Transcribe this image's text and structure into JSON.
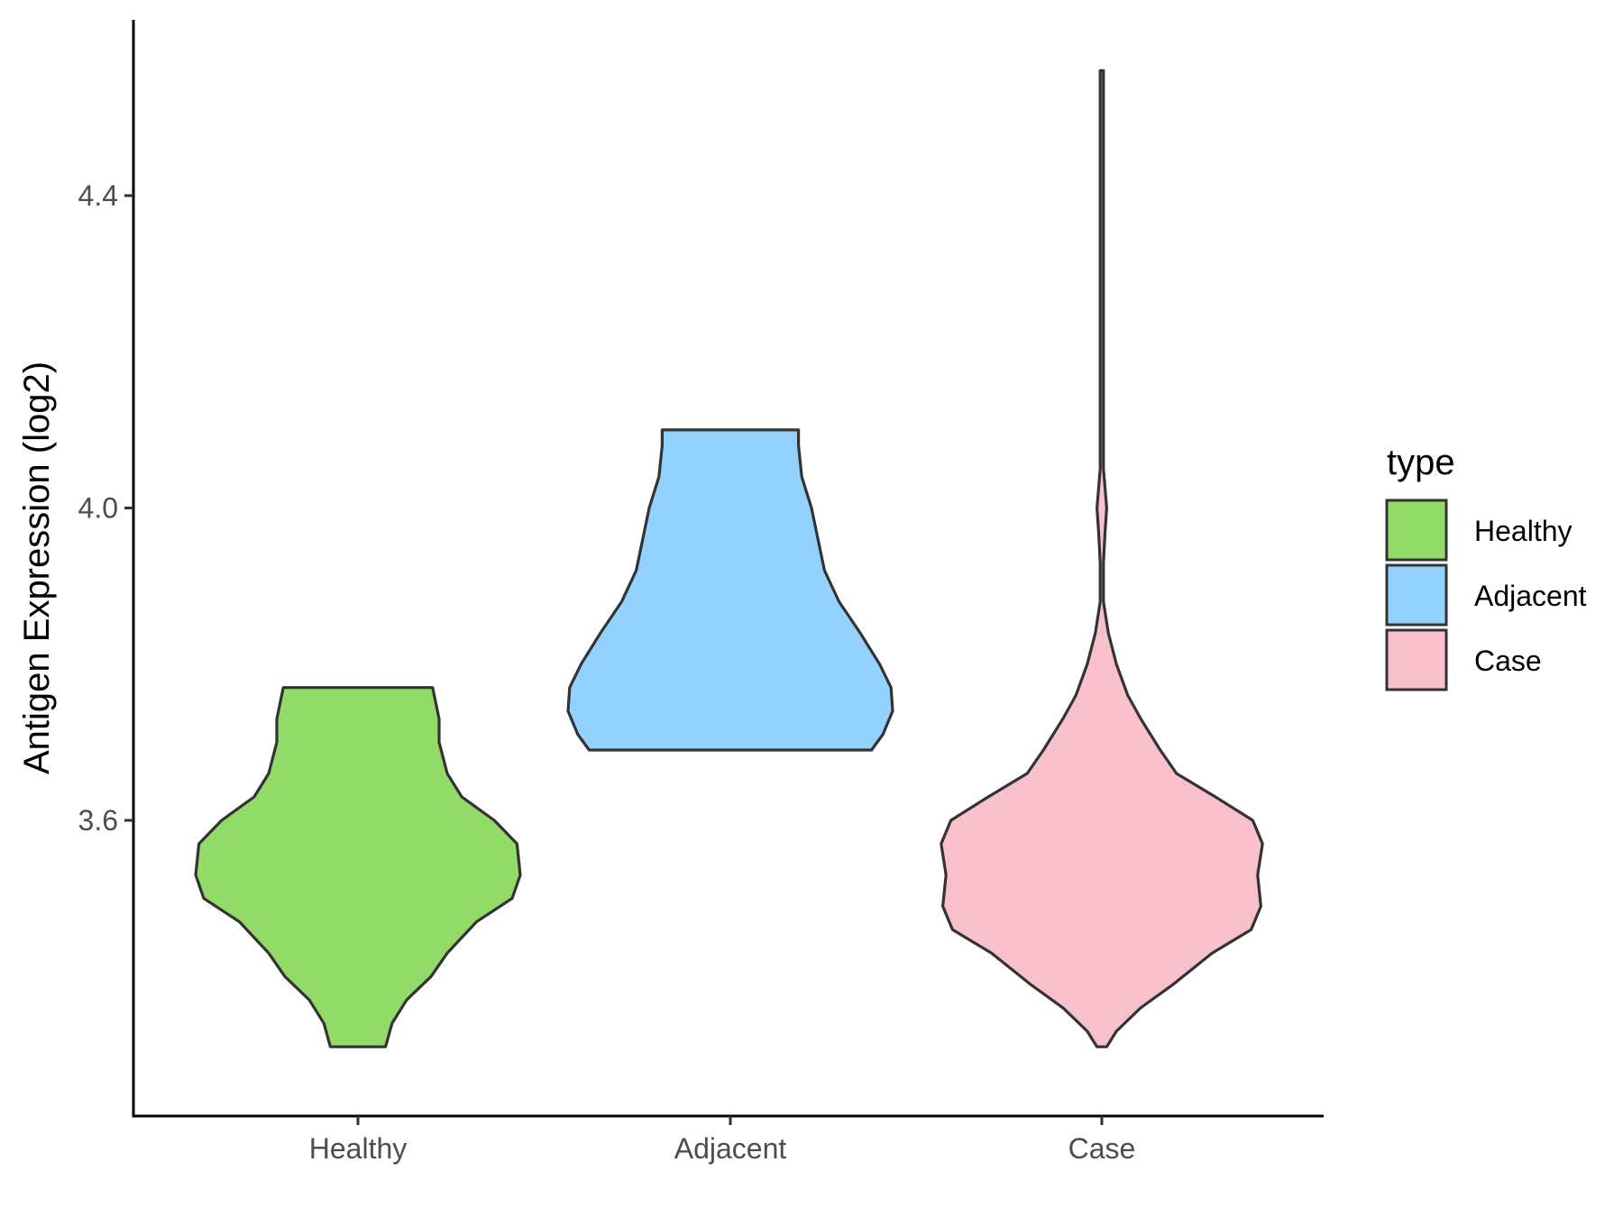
{
  "chart_data": {
    "type": "violin",
    "title": "",
    "xlabel": "",
    "ylabel": "Antigen Expression (log2)",
    "ylim": [
      3.26,
      4.67
    ],
    "y_ticks": [
      3.6,
      4.0,
      4.4
    ],
    "y_tick_labels": [
      "3.6",
      "4.0",
      "4.4"
    ],
    "categories": [
      "Healthy",
      "Adjacent",
      "Case"
    ],
    "grid": false,
    "legend": {
      "title": "type",
      "position": "right",
      "entries": [
        "Healthy",
        "Adjacent",
        "Case"
      ]
    },
    "series": [
      {
        "name": "Healthy",
        "color": "#93DB69",
        "y_min": 3.31,
        "y_max": 3.77,
        "density": [
          [
            3.31,
            0.17
          ],
          [
            3.34,
            0.21
          ],
          [
            3.37,
            0.3
          ],
          [
            3.4,
            0.45
          ],
          [
            3.43,
            0.55
          ],
          [
            3.47,
            0.73
          ],
          [
            3.5,
            0.95
          ],
          [
            3.53,
            1.0
          ],
          [
            3.57,
            0.98
          ],
          [
            3.6,
            0.84
          ],
          [
            3.63,
            0.64
          ],
          [
            3.66,
            0.55
          ],
          [
            3.7,
            0.5
          ],
          [
            3.73,
            0.5
          ],
          [
            3.77,
            0.46
          ]
        ]
      },
      {
        "name": "Adjacent",
        "color": "#93D2FF",
        "y_min": 3.69,
        "y_max": 4.1,
        "density": [
          [
            3.69,
            0.87
          ],
          [
            3.71,
            0.94
          ],
          [
            3.74,
            1.0
          ],
          [
            3.77,
            0.99
          ],
          [
            3.8,
            0.92
          ],
          [
            3.84,
            0.8
          ],
          [
            3.88,
            0.67
          ],
          [
            3.92,
            0.58
          ],
          [
            3.96,
            0.54
          ],
          [
            4.0,
            0.5
          ],
          [
            4.04,
            0.44
          ],
          [
            4.08,
            0.42
          ],
          [
            4.1,
            0.42
          ]
        ]
      },
      {
        "name": "Case",
        "color": "#F7C0CB",
        "y_min": 3.31,
        "y_max": 4.56,
        "density": [
          [
            3.31,
            0.03
          ],
          [
            3.33,
            0.09
          ],
          [
            3.36,
            0.24
          ],
          [
            3.39,
            0.44
          ],
          [
            3.43,
            0.68
          ],
          [
            3.46,
            0.92
          ],
          [
            3.49,
            0.98
          ],
          [
            3.53,
            0.96
          ],
          [
            3.57,
            0.99
          ],
          [
            3.6,
            0.93
          ],
          [
            3.63,
            0.7
          ],
          [
            3.66,
            0.46
          ],
          [
            3.69,
            0.36
          ],
          [
            3.73,
            0.24
          ],
          [
            3.76,
            0.16
          ],
          [
            3.8,
            0.09
          ],
          [
            3.84,
            0.04
          ],
          [
            3.88,
            0.01
          ],
          [
            3.93,
            0.01
          ],
          [
            3.97,
            0.02
          ],
          [
            4.0,
            0.03
          ],
          [
            4.05,
            0.01
          ],
          [
            4.1,
            0.01
          ],
          [
            4.2,
            0.01
          ],
          [
            4.3,
            0.01
          ],
          [
            4.4,
            0.01
          ],
          [
            4.5,
            0.01
          ],
          [
            4.56,
            0.01
          ]
        ]
      }
    ]
  }
}
